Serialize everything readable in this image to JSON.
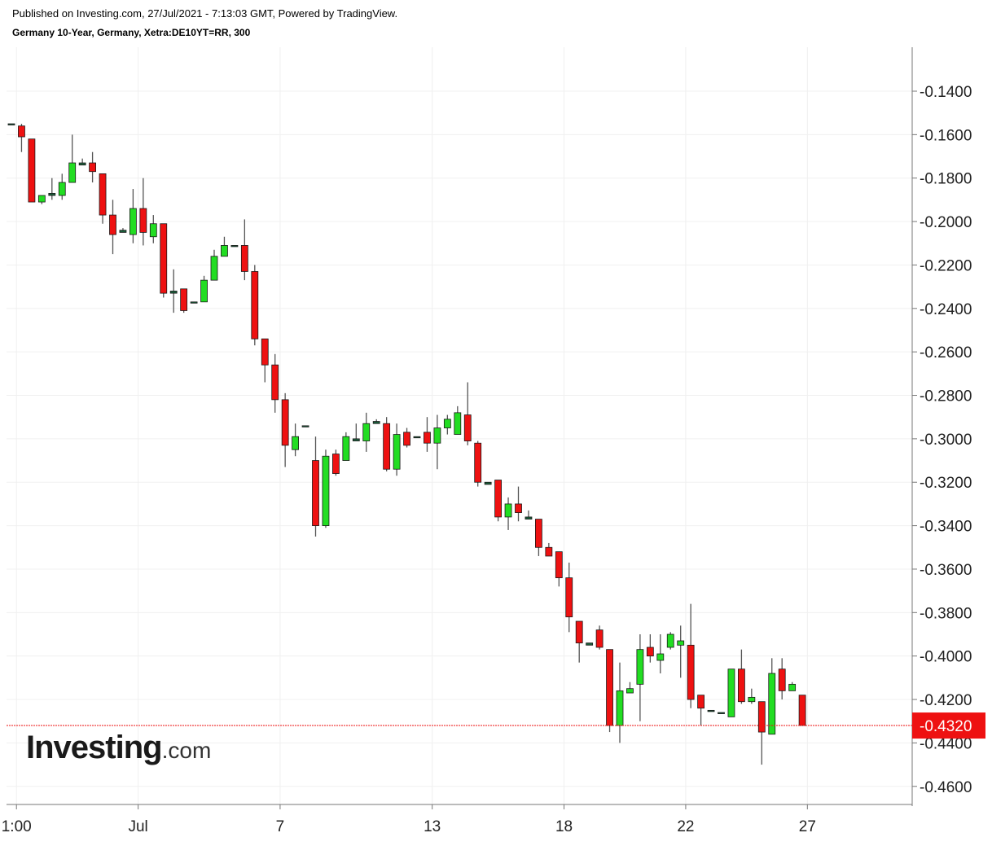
{
  "header": {
    "published": "Published on Investing.com, 27/Jul/2021 - 7:13:03 GMT, Powered by TradingView.",
    "symbol": "Germany 10-Year, Germany, Xetra:DE10YT=RR, 300"
  },
  "logo": {
    "brand": "Investing",
    "tld": ".com"
  },
  "colors": {
    "up": "#22dd22",
    "down": "#ee1111",
    "wick": "#555555",
    "grid": "#f0f0f0",
    "last_line": "#ee1111",
    "last_bg": "#ee1111"
  },
  "chart_data": {
    "type": "candlestick",
    "ylim": [
      -0.47,
      -0.12
    ],
    "y_ticks": [
      "-0.1400",
      "-0.1600",
      "-0.1800",
      "-0.2000",
      "-0.2200",
      "-0.2400",
      "-0.2600",
      "-0.2800",
      "-0.3000",
      "-0.3200",
      "-0.3400",
      "-0.3600",
      "-0.3800",
      "-0.4000",
      "-0.4200",
      "-0.4400",
      "-0.4600"
    ],
    "x_ticks": [
      {
        "label": "1:00",
        "idx": 0.5
      },
      {
        "label": "Jul",
        "idx": 12.5
      },
      {
        "label": "7",
        "idx": 26.5
      },
      {
        "label": "13",
        "idx": 41.5
      },
      {
        "label": "18",
        "idx": 54.5
      },
      {
        "label": "22",
        "idx": 66.5
      },
      {
        "label": "27",
        "idx": 78.5
      }
    ],
    "last_value": "-0.4320",
    "last": -0.432,
    "candles": [
      {
        "o": -0.155,
        "h": -0.155,
        "l": -0.155,
        "c": -0.155
      },
      {
        "o": -0.156,
        "h": -0.155,
        "l": -0.168,
        "c": -0.161
      },
      {
        "o": -0.162,
        "h": -0.162,
        "l": -0.191,
        "c": -0.191
      },
      {
        "o": -0.191,
        "h": -0.188,
        "l": -0.192,
        "c": -0.188
      },
      {
        "o": -0.188,
        "h": -0.18,
        "l": -0.19,
        "c": -0.187
      },
      {
        "o": -0.188,
        "h": -0.178,
        "l": -0.19,
        "c": -0.182
      },
      {
        "o": -0.182,
        "h": -0.16,
        "l": -0.182,
        "c": -0.173
      },
      {
        "o": -0.173,
        "h": -0.171,
        "l": -0.173,
        "c": -0.174
      },
      {
        "o": -0.173,
        "h": -0.168,
        "l": -0.182,
        "c": -0.177
      },
      {
        "o": -0.178,
        "h": -0.178,
        "l": -0.201,
        "c": -0.197
      },
      {
        "o": -0.197,
        "h": -0.19,
        "l": -0.215,
        "c": -0.206
      },
      {
        "o": -0.205,
        "h": -0.203,
        "l": -0.205,
        "c": -0.204
      },
      {
        "o": -0.206,
        "h": -0.185,
        "l": -0.21,
        "c": -0.194
      },
      {
        "o": -0.194,
        "h": -0.18,
        "l": -0.211,
        "c": -0.205
      },
      {
        "o": -0.207,
        "h": -0.197,
        "l": -0.21,
        "c": -0.201
      },
      {
        "o": -0.201,
        "h": -0.201,
        "l": -0.235,
        "c": -0.233
      },
      {
        "o": -0.233,
        "h": -0.222,
        "l": -0.242,
        "c": -0.232
      },
      {
        "o": -0.231,
        "h": -0.231,
        "l": -0.242,
        "c": -0.241
      },
      {
        "o": -0.237,
        "h": -0.237,
        "l": -0.237,
        "c": -0.237
      },
      {
        "o": -0.237,
        "h": -0.225,
        "l": -0.237,
        "c": -0.227
      },
      {
        "o": -0.227,
        "h": -0.213,
        "l": -0.227,
        "c": -0.216
      },
      {
        "o": -0.216,
        "h": -0.207,
        "l": -0.216,
        "c": -0.211
      },
      {
        "o": -0.211,
        "h": -0.211,
        "l": -0.211,
        "c": -0.211
      },
      {
        "o": -0.211,
        "h": -0.199,
        "l": -0.227,
        "c": -0.223
      },
      {
        "o": -0.223,
        "h": -0.22,
        "l": -0.257,
        "c": -0.254
      },
      {
        "o": -0.254,
        "h": -0.254,
        "l": -0.274,
        "c": -0.266
      },
      {
        "o": -0.266,
        "h": -0.261,
        "l": -0.288,
        "c": -0.282
      },
      {
        "o": -0.282,
        "h": -0.279,
        "l": -0.313,
        "c": -0.303
      },
      {
        "o": -0.305,
        "h": -0.293,
        "l": -0.308,
        "c": -0.299
      },
      {
        "o": -0.294,
        "h": -0.294,
        "l": -0.294,
        "c": -0.294
      },
      {
        "o": -0.31,
        "h": -0.299,
        "l": -0.345,
        "c": -0.34
      },
      {
        "o": -0.34,
        "h": -0.305,
        "l": -0.341,
        "c": -0.308
      },
      {
        "o": -0.307,
        "h": -0.305,
        "l": -0.317,
        "c": -0.316
      },
      {
        "o": -0.31,
        "h": -0.297,
        "l": -0.31,
        "c": -0.299
      },
      {
        "o": -0.3,
        "h": -0.293,
        "l": -0.3,
        "c": -0.301
      },
      {
        "o": -0.301,
        "h": -0.288,
        "l": -0.306,
        "c": -0.293
      },
      {
        "o": -0.293,
        "h": -0.291,
        "l": -0.293,
        "c": -0.292
      },
      {
        "o": -0.293,
        "h": -0.29,
        "l": -0.315,
        "c": -0.314
      },
      {
        "o": -0.314,
        "h": -0.293,
        "l": -0.317,
        "c": -0.298
      },
      {
        "o": -0.297,
        "h": -0.295,
        "l": -0.304,
        "c": -0.303
      },
      {
        "o": -0.299,
        "h": -0.299,
        "l": -0.299,
        "c": -0.299
      },
      {
        "o": -0.297,
        "h": -0.29,
        "l": -0.306,
        "c": -0.302
      },
      {
        "o": -0.302,
        "h": -0.289,
        "l": -0.314,
        "c": -0.295
      },
      {
        "o": -0.295,
        "h": -0.289,
        "l": -0.298,
        "c": -0.291
      },
      {
        "o": -0.298,
        "h": -0.285,
        "l": -0.298,
        "c": -0.288
      },
      {
        "o": -0.289,
        "h": -0.274,
        "l": -0.303,
        "c": -0.301
      },
      {
        "o": -0.302,
        "h": -0.301,
        "l": -0.322,
        "c": -0.32
      },
      {
        "o": -0.32,
        "h": -0.32,
        "l": -0.321,
        "c": -0.321
      },
      {
        "o": -0.319,
        "h": -0.319,
        "l": -0.338,
        "c": -0.336
      },
      {
        "o": -0.336,
        "h": -0.327,
        "l": -0.342,
        "c": -0.33
      },
      {
        "o": -0.33,
        "h": -0.322,
        "l": -0.338,
        "c": -0.334
      },
      {
        "o": -0.336,
        "h": -0.333,
        "l": -0.337,
        "c": -0.337
      },
      {
        "o": -0.337,
        "h": -0.337,
        "l": -0.354,
        "c": -0.35
      },
      {
        "o": -0.35,
        "h": -0.348,
        "l": -0.354,
        "c": -0.354
      },
      {
        "o": -0.352,
        "h": -0.352,
        "l": -0.368,
        "c": -0.364
      },
      {
        "o": -0.364,
        "h": -0.357,
        "l": -0.389,
        "c": -0.382
      },
      {
        "o": -0.384,
        "h": -0.384,
        "l": -0.403,
        "c": -0.394
      },
      {
        "o": -0.394,
        "h": -0.394,
        "l": -0.395,
        "c": -0.395
      },
      {
        "o": -0.388,
        "h": -0.386,
        "l": -0.397,
        "c": -0.396
      },
      {
        "o": -0.397,
        "h": -0.397,
        "l": -0.435,
        "c": -0.432
      },
      {
        "o": -0.432,
        "h": -0.403,
        "l": -0.44,
        "c": -0.416
      },
      {
        "o": -0.417,
        "h": -0.412,
        "l": -0.417,
        "c": -0.415
      },
      {
        "o": -0.413,
        "h": -0.39,
        "l": -0.43,
        "c": -0.397
      },
      {
        "o": -0.396,
        "h": -0.39,
        "l": -0.403,
        "c": -0.4
      },
      {
        "o": -0.402,
        "h": -0.39,
        "l": -0.408,
        "c": -0.399
      },
      {
        "o": -0.396,
        "h": -0.389,
        "l": -0.397,
        "c": -0.39
      },
      {
        "o": -0.395,
        "h": -0.386,
        "l": -0.41,
        "c": -0.393
      },
      {
        "o": -0.395,
        "h": -0.376,
        "l": -0.424,
        "c": -0.42
      },
      {
        "o": -0.418,
        "h": -0.418,
        "l": -0.432,
        "c": -0.424
      },
      {
        "o": -0.425,
        "h": -0.425,
        "l": -0.425,
        "c": -0.425
      },
      {
        "o": -0.426,
        "h": -0.426,
        "l": -0.426,
        "c": -0.426
      },
      {
        "o": -0.428,
        "h": -0.406,
        "l": -0.428,
        "c": -0.406
      },
      {
        "o": -0.406,
        "h": -0.397,
        "l": -0.422,
        "c": -0.421
      },
      {
        "o": -0.421,
        "h": -0.415,
        "l": -0.422,
        "c": -0.419
      },
      {
        "o": -0.421,
        "h": -0.421,
        "l": -0.45,
        "c": -0.435
      },
      {
        "o": -0.436,
        "h": -0.401,
        "l": -0.436,
        "c": -0.408
      },
      {
        "o": -0.406,
        "h": -0.401,
        "l": -0.42,
        "c": -0.416
      },
      {
        "o": -0.416,
        "h": -0.412,
        "l": -0.416,
        "c": -0.413
      },
      {
        "o": -0.418,
        "h": -0.418,
        "l": -0.432,
        "c": -0.432
      }
    ]
  }
}
